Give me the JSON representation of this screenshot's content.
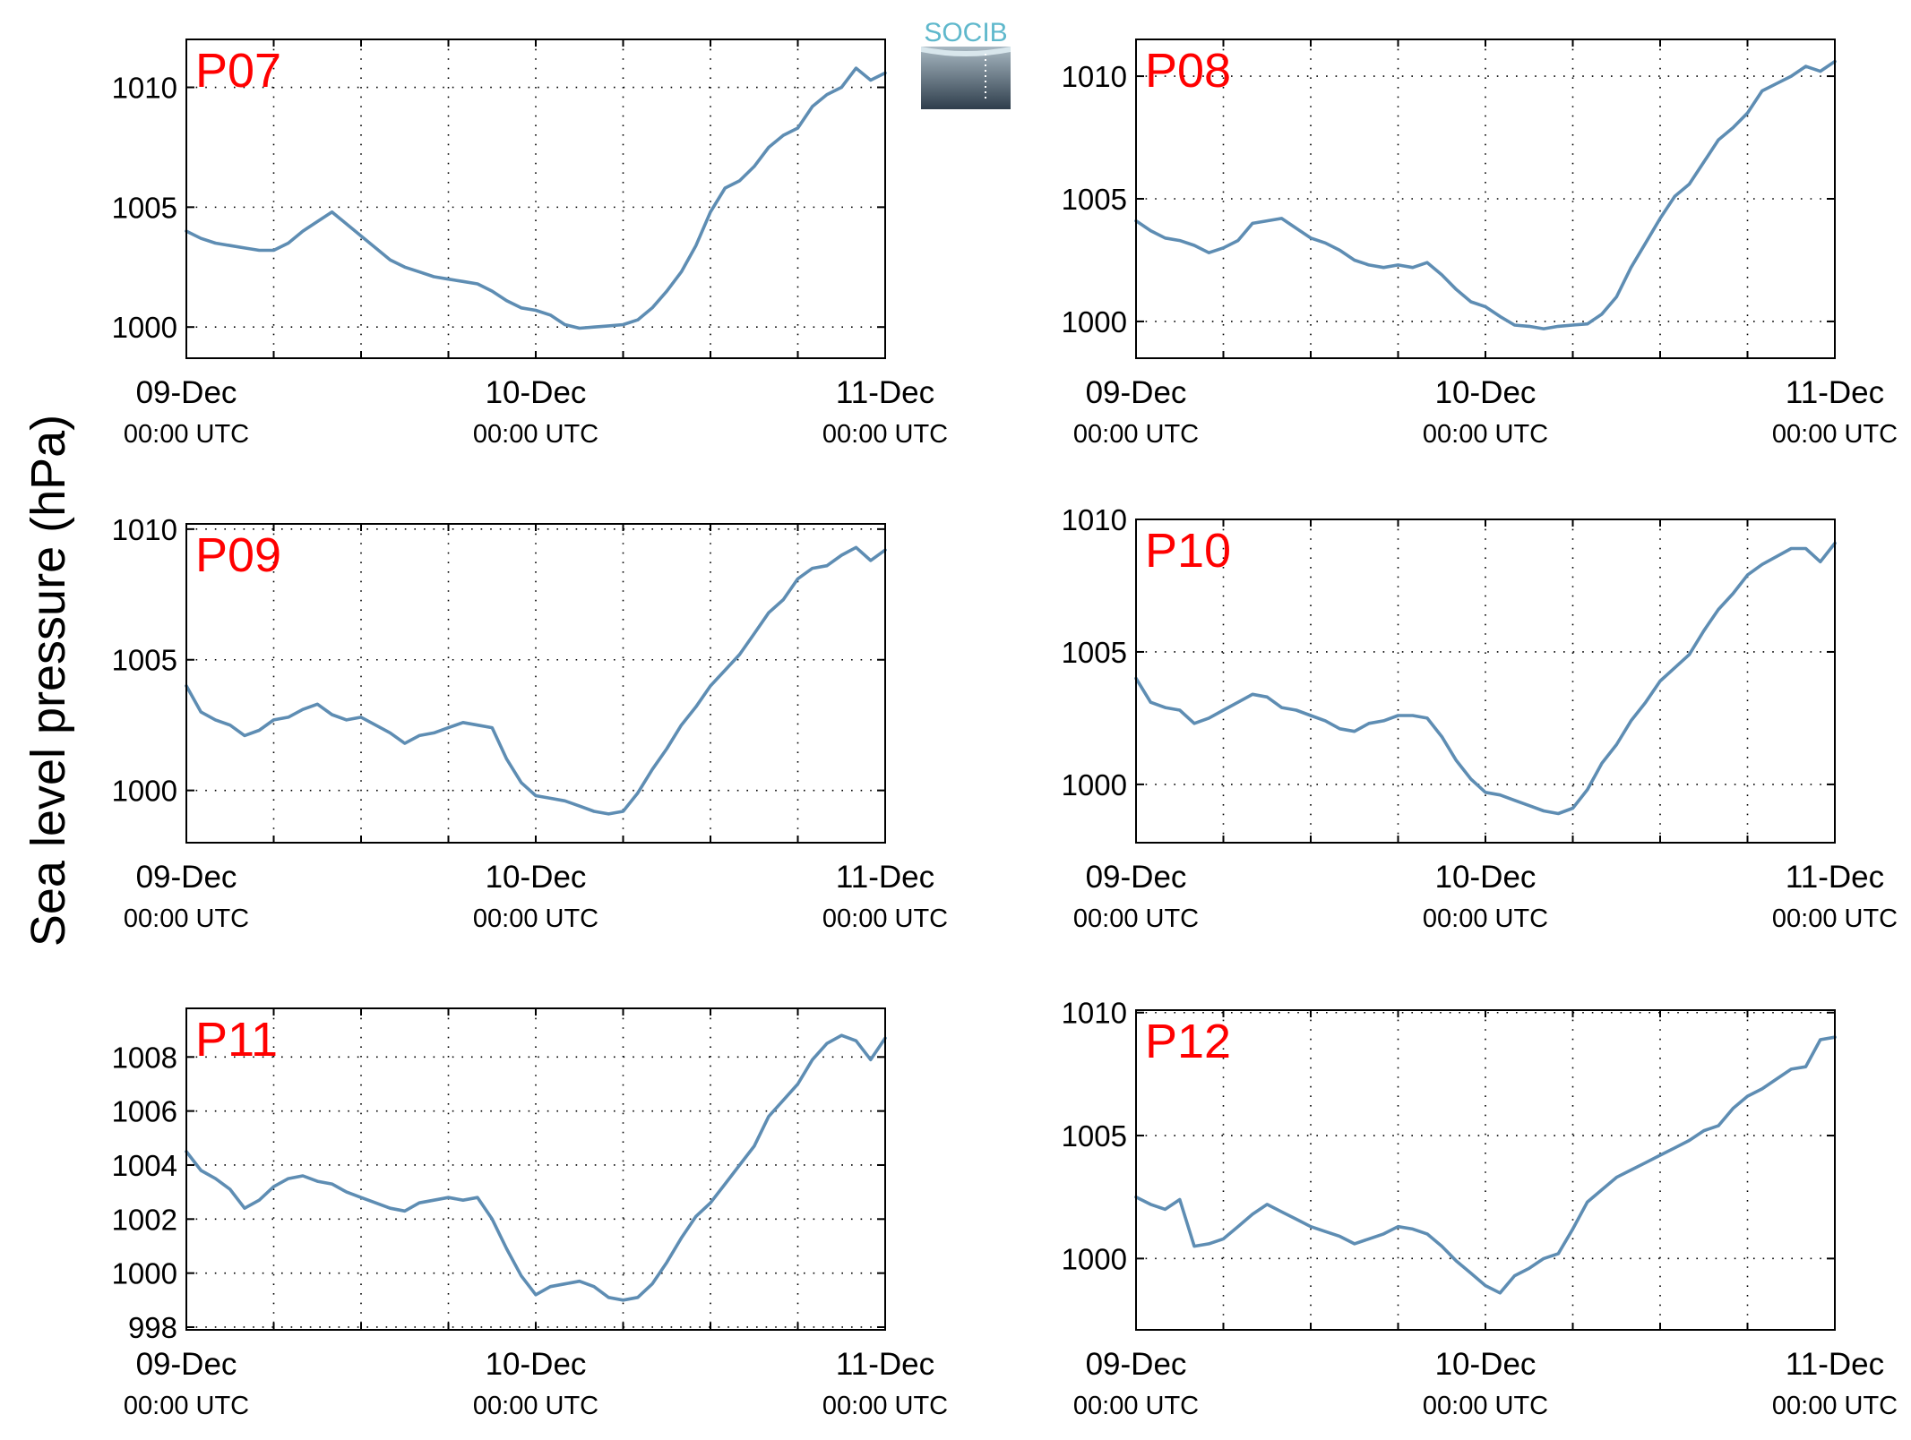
{
  "figure": {
    "ylabel": "Sea level pressure (hPa)",
    "logo_text": "SOCIB",
    "line_color": "#5e8db3",
    "panel_label_color": "#ff0000",
    "layout": "3 rows x 2 columns"
  },
  "chart_data": [
    {
      "type": "line",
      "title": "P07",
      "x_unit": "hours since 09-Dec 00:00 UTC",
      "xlim": [
        0,
        48
      ],
      "ylim": [
        998.7,
        1012.0
      ],
      "yticks": [
        "1000",
        "1005",
        "1010"
      ],
      "xtick_dates": [
        "09-Dec",
        "10-Dec",
        "11-Dec"
      ],
      "xtick_times": [
        "00:00 UTC",
        "00:00 UTC",
        "00:00 UTC"
      ],
      "grid": true,
      "series": [
        {
          "x": [
            0,
            1,
            2,
            3,
            4,
            5,
            6,
            7,
            8,
            9,
            10,
            11,
            12,
            13,
            14,
            15,
            16,
            17,
            18,
            19,
            20,
            21,
            22,
            23,
            24,
            25,
            26,
            27,
            28,
            29,
            30,
            31,
            32,
            33,
            34,
            35,
            36,
            37,
            38,
            39,
            40,
            41,
            42,
            43,
            44,
            45,
            46,
            47,
            48
          ],
          "y": [
            1004.0,
            1003.7,
            1003.5,
            1003.4,
            1003.3,
            1003.2,
            1003.2,
            1003.5,
            1004.0,
            1004.4,
            1004.8,
            1004.3,
            1003.8,
            1003.3,
            1002.8,
            1002.5,
            1002.3,
            1002.1,
            1002.0,
            1001.9,
            1001.8,
            1001.5,
            1001.1,
            1000.8,
            1000.7,
            1000.5,
            1000.1,
            999.95,
            1000.0,
            1000.05,
            1000.1,
            1000.3,
            1000.8,
            1001.5,
            1002.3,
            1003.4,
            1004.8,
            1005.8,
            1006.1,
            1006.7,
            1007.5,
            1008.0,
            1008.3,
            1009.2,
            1009.7,
            1010.0,
            1010.8,
            1010.3,
            1010.6
          ]
        }
      ]
    },
    {
      "type": "line",
      "title": "P08",
      "x_unit": "hours since 09-Dec 00:00 UTC",
      "xlim": [
        0,
        48
      ],
      "ylim": [
        998.5,
        1011.5
      ],
      "yticks": [
        "1000",
        "1005",
        "1010"
      ],
      "xtick_dates": [
        "09-Dec",
        "10-Dec",
        "11-Dec"
      ],
      "xtick_times": [
        "00:00 UTC",
        "00:00 UTC",
        "00:00 UTC"
      ],
      "grid": true,
      "series": [
        {
          "x": [
            0,
            1,
            2,
            3,
            4,
            5,
            6,
            7,
            8,
            9,
            10,
            11,
            12,
            13,
            14,
            15,
            16,
            17,
            18,
            19,
            20,
            21,
            22,
            23,
            24,
            25,
            26,
            27,
            28,
            29,
            30,
            31,
            32,
            33,
            34,
            35,
            36,
            37,
            38,
            39,
            40,
            41,
            42,
            43,
            44,
            45,
            46,
            47,
            48
          ],
          "y": [
            1004.1,
            1003.7,
            1003.4,
            1003.3,
            1003.1,
            1002.8,
            1003.0,
            1003.3,
            1004.0,
            1004.1,
            1004.2,
            1003.8,
            1003.4,
            1003.2,
            1002.9,
            1002.5,
            1002.3,
            1002.2,
            1002.3,
            1002.2,
            1002.4,
            1001.9,
            1001.3,
            1000.8,
            1000.6,
            1000.2,
            999.85,
            999.8,
            999.7,
            999.8,
            999.85,
            999.9,
            1000.3,
            1001.0,
            1002.2,
            1003.2,
            1004.2,
            1005.1,
            1005.6,
            1006.5,
            1007.4,
            1007.9,
            1008.5,
            1009.4,
            1009.7,
            1010.0,
            1010.4,
            1010.2,
            1010.6
          ]
        }
      ]
    },
    {
      "type": "line",
      "title": "P09",
      "x_unit": "hours since 09-Dec 00:00 UTC",
      "xlim": [
        0,
        48
      ],
      "ylim": [
        998.0,
        1010.2
      ],
      "yticks": [
        "1000",
        "1005",
        "1010"
      ],
      "xtick_dates": [
        "09-Dec",
        "10-Dec",
        "11-Dec"
      ],
      "xtick_times": [
        "00:00 UTC",
        "00:00 UTC",
        "00:00 UTC"
      ],
      "grid": true,
      "series": [
        {
          "x": [
            0,
            1,
            2,
            3,
            4,
            5,
            6,
            7,
            8,
            9,
            10,
            11,
            12,
            13,
            14,
            15,
            16,
            17,
            18,
            19,
            20,
            21,
            22,
            23,
            24,
            25,
            26,
            27,
            28,
            29,
            30,
            31,
            32,
            33,
            34,
            35,
            36,
            37,
            38,
            39,
            40,
            41,
            42,
            43,
            44,
            45,
            46,
            47,
            48
          ],
          "y": [
            1004.0,
            1003.0,
            1002.7,
            1002.5,
            1002.1,
            1002.3,
            1002.7,
            1002.8,
            1003.1,
            1003.3,
            1002.9,
            1002.7,
            1002.8,
            1002.5,
            1002.2,
            1001.8,
            1002.1,
            1002.2,
            1002.4,
            1002.6,
            1002.5,
            1002.4,
            1001.2,
            1000.3,
            999.8,
            999.7,
            999.6,
            999.4,
            999.2,
            999.1,
            999.2,
            999.9,
            1000.8,
            1001.6,
            1002.5,
            1003.2,
            1004.0,
            1004.6,
            1005.2,
            1006.0,
            1006.8,
            1007.3,
            1008.1,
            1008.5,
            1008.6,
            1009.0,
            1009.3,
            1008.8,
            1009.2
          ]
        }
      ]
    },
    {
      "type": "line",
      "title": "P10",
      "x_unit": "hours since 09-Dec 00:00 UTC",
      "xlim": [
        0,
        48
      ],
      "ylim": [
        997.8,
        1010.0
      ],
      "yticks": [
        "1000",
        "1005",
        "1010"
      ],
      "xtick_dates": [
        "09-Dec",
        "10-Dec",
        "11-Dec"
      ],
      "xtick_times": [
        "00:00 UTC",
        "00:00 UTC",
        "00:00 UTC"
      ],
      "grid": true,
      "series": [
        {
          "x": [
            0,
            1,
            2,
            3,
            4,
            5,
            6,
            7,
            8,
            9,
            10,
            11,
            12,
            13,
            14,
            15,
            16,
            17,
            18,
            19,
            20,
            21,
            22,
            23,
            24,
            25,
            26,
            27,
            28,
            29,
            30,
            31,
            32,
            33,
            34,
            35,
            36,
            37,
            38,
            39,
            40,
            41,
            42,
            43,
            44,
            45,
            46,
            47,
            48
          ],
          "y": [
            1004.0,
            1003.1,
            1002.9,
            1002.8,
            1002.3,
            1002.5,
            1002.8,
            1003.1,
            1003.4,
            1003.3,
            1002.9,
            1002.8,
            1002.6,
            1002.4,
            1002.1,
            1002.0,
            1002.3,
            1002.4,
            1002.6,
            1002.6,
            1002.5,
            1001.8,
            1000.9,
            1000.2,
            999.7,
            999.6,
            999.4,
            999.2,
            999.0,
            998.9,
            999.1,
            999.8,
            1000.8,
            1001.5,
            1002.4,
            1003.1,
            1003.9,
            1004.4,
            1004.9,
            1005.8,
            1006.6,
            1007.2,
            1007.9,
            1008.3,
            1008.6,
            1008.9,
            1008.9,
            1008.4,
            1009.1
          ]
        }
      ]
    },
    {
      "type": "line",
      "title": "P11",
      "x_unit": "hours since 09-Dec 00:00 UTC",
      "xlim": [
        0,
        48
      ],
      "ylim": [
        997.9,
        1009.8
      ],
      "yticks": [
        "998",
        "1000",
        "1002",
        "1004",
        "1006",
        "1008"
      ],
      "xtick_dates": [
        "09-Dec",
        "10-Dec",
        "11-Dec"
      ],
      "xtick_times": [
        "00:00 UTC",
        "00:00 UTC",
        "00:00 UTC"
      ],
      "grid": true,
      "series": [
        {
          "x": [
            0,
            1,
            2,
            3,
            4,
            5,
            6,
            7,
            8,
            9,
            10,
            11,
            12,
            13,
            14,
            15,
            16,
            17,
            18,
            19,
            20,
            21,
            22,
            23,
            24,
            25,
            26,
            27,
            28,
            29,
            30,
            31,
            32,
            33,
            34,
            35,
            36,
            37,
            38,
            39,
            40,
            41,
            42,
            43,
            44,
            45,
            46,
            47,
            48
          ],
          "y": [
            1004.5,
            1003.8,
            1003.5,
            1003.1,
            1002.4,
            1002.7,
            1003.2,
            1003.5,
            1003.6,
            1003.4,
            1003.3,
            1003.0,
            1002.8,
            1002.6,
            1002.4,
            1002.3,
            1002.6,
            1002.7,
            1002.8,
            1002.7,
            1002.8,
            1002.0,
            1000.9,
            999.9,
            999.2,
            999.5,
            999.6,
            999.7,
            999.5,
            999.1,
            999.0,
            999.1,
            999.6,
            1000.4,
            1001.3,
            1002.1,
            1002.6,
            1003.3,
            1004.0,
            1004.7,
            1005.8,
            1006.4,
            1007.0,
            1007.9,
            1008.5,
            1008.8,
            1008.6,
            1007.9,
            1008.7
          ]
        }
      ]
    },
    {
      "type": "line",
      "title": "P12",
      "x_unit": "hours since 09-Dec 00:00 UTC",
      "xlim": [
        0,
        48
      ],
      "ylim": [
        997.1,
        1010.1
      ],
      "yticks": [
        "1000",
        "1005",
        "1010"
      ],
      "xtick_dates": [
        "09-Dec",
        "10-Dec",
        "11-Dec"
      ],
      "xtick_times": [
        "00:00 UTC",
        "00:00 UTC",
        "00:00 UTC"
      ],
      "grid": true,
      "series": [
        {
          "x": [
            0,
            1,
            2,
            3,
            4,
            5,
            6,
            7,
            8,
            9,
            10,
            11,
            12,
            13,
            14,
            15,
            16,
            17,
            18,
            19,
            20,
            21,
            22,
            23,
            24,
            25,
            26,
            27,
            28,
            29,
            30,
            31,
            32,
            33,
            34,
            35,
            36,
            37,
            38,
            39,
            40,
            41,
            42,
            43,
            44,
            45,
            46,
            47,
            48
          ],
          "y": [
            1002.5,
            1002.2,
            1002.0,
            1002.4,
            1000.5,
            1000.6,
            1000.8,
            1001.3,
            1001.8,
            1002.2,
            1001.9,
            1001.6,
            1001.3,
            1001.1,
            1000.9,
            1000.6,
            1000.8,
            1001.0,
            1001.3,
            1001.2,
            1001.0,
            1000.5,
            999.9,
            999.4,
            998.9,
            998.6,
            999.3,
            999.6,
            1000.0,
            1000.2,
            1001.2,
            1002.3,
            1002.8,
            1003.3,
            1003.6,
            1003.9,
            1004.2,
            1004.5,
            1004.8,
            1005.2,
            1005.4,
            1006.1,
            1006.6,
            1006.9,
            1007.3,
            1007.7,
            1007.8,
            1008.9,
            1009.0
          ]
        }
      ]
    }
  ]
}
